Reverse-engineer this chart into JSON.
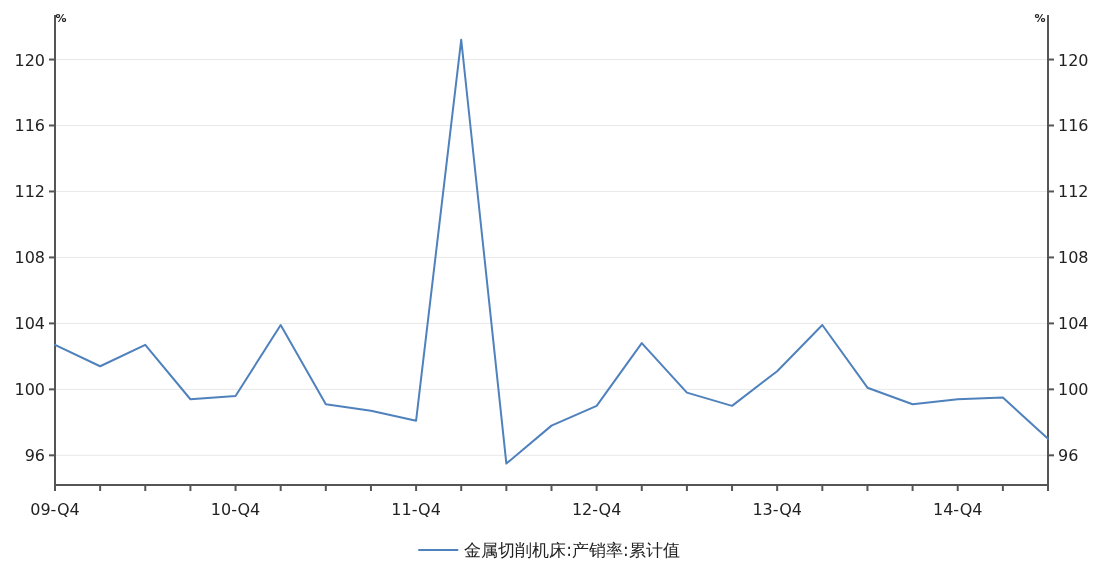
{
  "chart_data": {
    "type": "line",
    "categories": [
      "09-Q4",
      null,
      null,
      null,
      "10-Q4",
      null,
      null,
      null,
      "11-Q4",
      null,
      null,
      null,
      "12-Q4",
      null,
      null,
      null,
      "13-Q4",
      null,
      null,
      null,
      "14-Q4",
      null,
      null
    ],
    "series": [
      {
        "name": "金属切削机床:产销率:累计值",
        "color": "#4f81bd",
        "values": [
          102.7,
          101.4,
          102.7,
          99.4,
          99.6,
          103.9,
          99.1,
          98.7,
          98.1,
          121.2,
          95.5,
          97.8,
          99.0,
          102.8,
          99.8,
          99.0,
          101.1,
          103.9,
          100.1,
          99.1,
          99.4,
          99.5,
          97.0
        ]
      }
    ],
    "ylabel": "%",
    "y2label": "%",
    "ylim": [
      94.2,
      122.7
    ],
    "yticks": [
      96,
      100,
      104,
      108,
      112,
      116,
      120
    ],
    "y2lim": [
      94.2,
      122.7
    ],
    "y2ticks": [
      96,
      100,
      104,
      108,
      112,
      116,
      120
    ],
    "grid": "y",
    "legend": "bottom",
    "marker": "none",
    "line_style": "solid"
  }
}
